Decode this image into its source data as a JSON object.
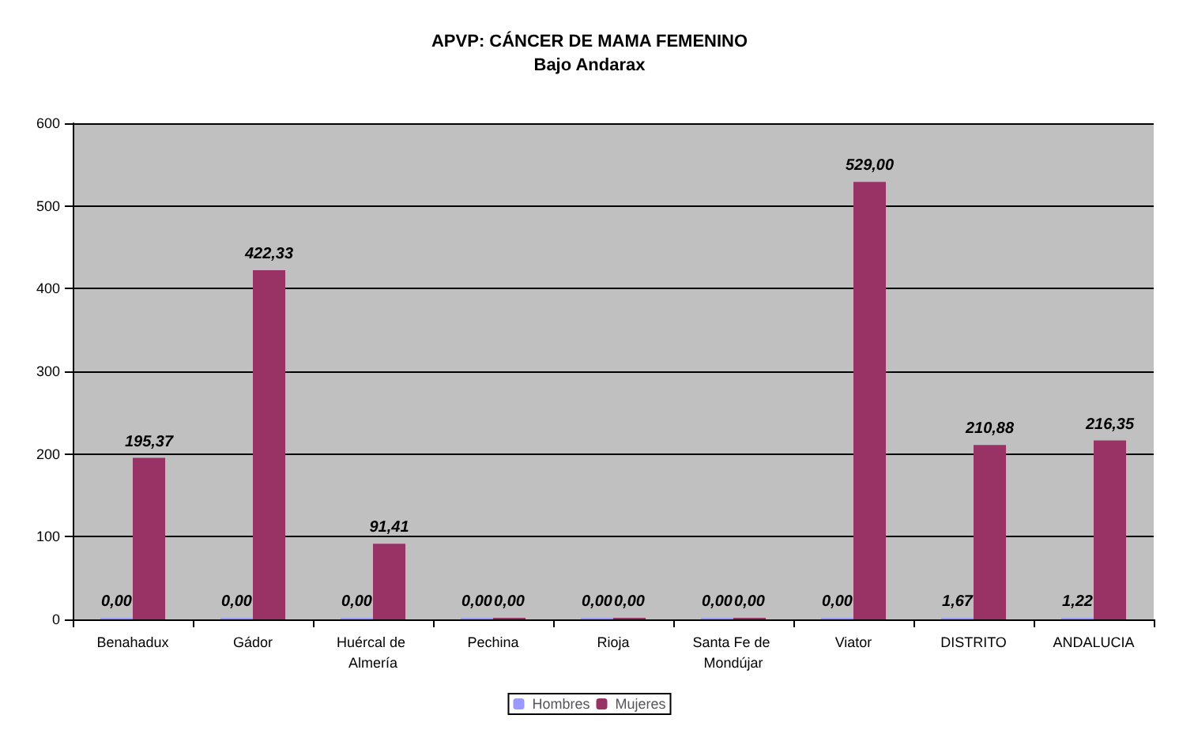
{
  "chart_data": {
    "type": "bar",
    "title": "APVP: CÁNCER DE MAMA FEMENINO",
    "subtitle": "Bajo Andarax",
    "categories": [
      "Benahadux",
      "Gádor",
      "Huércal de Almería",
      "Pechina",
      "Rioja",
      "Santa Fe de Mondújar",
      "Viator",
      "DISTRITO",
      "ANDALUCIA"
    ],
    "series": [
      {
        "name": "Hombres",
        "color": "#9999ff",
        "values": [
          0,
          0,
          0,
          0,
          0,
          0,
          0,
          1.67,
          1.22
        ],
        "value_labels": [
          "0,00",
          "0,00",
          "0,00",
          "0,00",
          "0,00",
          "0,00",
          "0,00",
          "1,67",
          "1,22"
        ]
      },
      {
        "name": "Mujeres",
        "color": "#993366",
        "values": [
          195.37,
          422.33,
          91.41,
          0,
          0,
          0,
          529.0,
          210.88,
          216.35
        ],
        "value_labels": [
          "195,37",
          "422,33",
          "91,41",
          "0,00",
          "0,00",
          "0,00",
          "529,00",
          "210,88",
          "216,35"
        ]
      }
    ],
    "ylim": [
      0,
      600
    ],
    "yticks": [
      0,
      100,
      200,
      300,
      400,
      500,
      600
    ],
    "grid": "y",
    "legend": "bottom"
  }
}
